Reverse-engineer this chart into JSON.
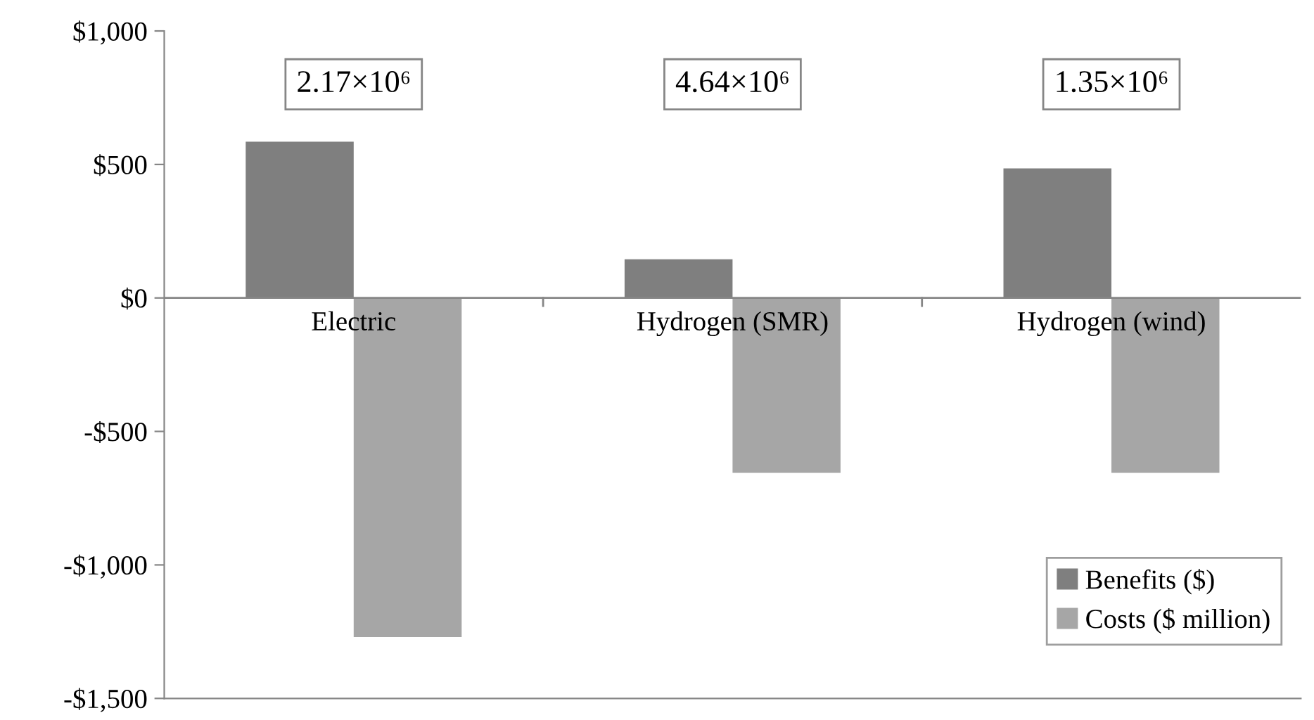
{
  "chart_data": {
    "type": "bar",
    "categories": [
      "Electric",
      "Hydrogen (SMR)",
      "Hydrogen (wind)"
    ],
    "series": [
      {
        "name": "Benefits ($)",
        "color": "#7f7f7f",
        "values": [
          585,
          145,
          485
        ]
      },
      {
        "name": "Costs ($ million)",
        "color": "#a6a6a6",
        "values": [
          -1270,
          -655,
          -655
        ]
      }
    ],
    "annotations": [
      "2.17×10⁶",
      "4.64×10⁶",
      "1.35×10⁶"
    ],
    "ylim": [
      -1500,
      1000
    ],
    "yticks": [
      {
        "value": -1500,
        "label": "-$1,500"
      },
      {
        "value": -1000,
        "label": "-$1,000"
      },
      {
        "value": -500,
        "label": "-$500"
      },
      {
        "value": 0,
        "label": "$0"
      },
      {
        "value": 500,
        "label": "$500"
      },
      {
        "value": 1000,
        "label": "$1,000"
      }
    ],
    "legend": "bottom right",
    "grid": false
  }
}
